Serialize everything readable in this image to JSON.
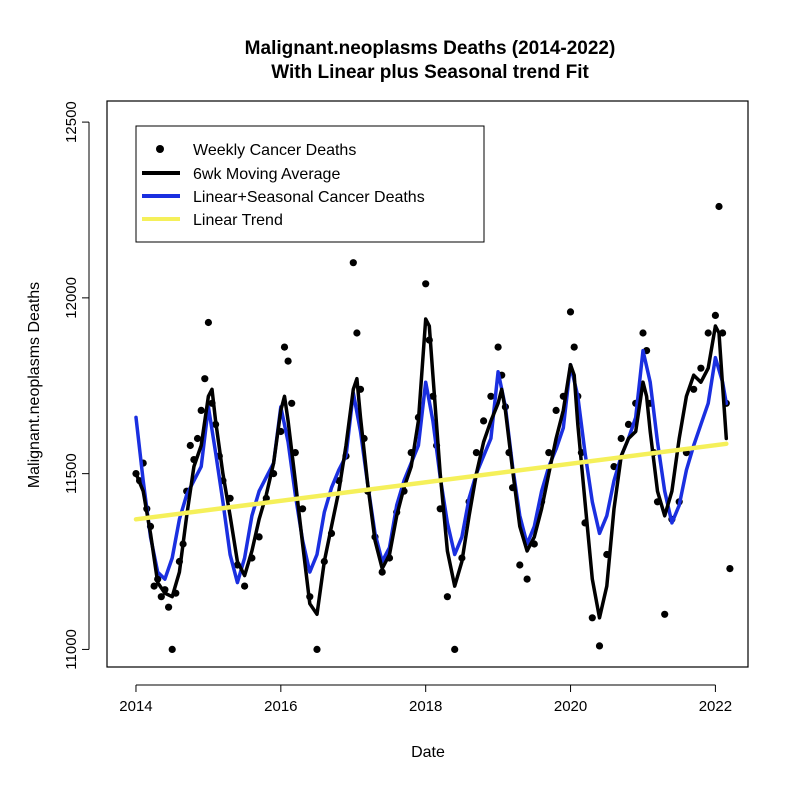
{
  "chart_data": {
    "type": "line",
    "title": "Malignant.neoplasms Deaths (2014-2022)",
    "subtitle": "With Linear plus Seasonal trend Fit",
    "xlabel": "Date",
    "ylabel": "Malignant.neoplasms Deaths",
    "xlim": [
      2013.6,
      2022.45
    ],
    "ylim": [
      10950,
      12560
    ],
    "x_ticks": [
      2014,
      2016,
      2018,
      2020,
      2022
    ],
    "y_ticks": [
      11000,
      11500,
      12000,
      12500
    ],
    "x_tick_labels": [
      "2014",
      "2016",
      "2018",
      "2020",
      "2022"
    ],
    "y_tick_labels": [
      "11000",
      "11500",
      "12000",
      "12500"
    ],
    "grid": false,
    "legend_position": "top-left",
    "legend": [
      {
        "label": "Weekly Cancer Deaths",
        "symbol": "point",
        "color": "#000000"
      },
      {
        "label": "6wk Moving Average",
        "symbol": "line",
        "color": "#000000"
      },
      {
        "label": "Linear+Seasonal Cancer Deaths",
        "symbol": "line",
        "color": "#1a2fe0"
      },
      {
        "label": "Linear Trend",
        "symbol": "line",
        "color": "#f5f05a"
      }
    ],
    "series": [
      {
        "name": "Weekly Cancer Deaths",
        "type": "scatter",
        "color": "#000000",
        "x": [
          2014.0,
          2014.05,
          2014.1,
          2014.15,
          2014.2,
          2014.25,
          2014.3,
          2014.35,
          2014.4,
          2014.45,
          2014.5,
          2014.55,
          2014.6,
          2014.65,
          2014.7,
          2014.75,
          2014.8,
          2014.85,
          2014.9,
          2014.95,
          2015.0,
          2015.05,
          2015.1,
          2015.15,
          2015.2,
          2015.3,
          2015.4,
          2015.5,
          2015.6,
          2015.7,
          2015.8,
          2015.9,
          2016.0,
          2016.05,
          2016.1,
          2016.15,
          2016.2,
          2016.3,
          2016.4,
          2016.5,
          2016.6,
          2016.7,
          2016.8,
          2016.9,
          2017.0,
          2017.05,
          2017.1,
          2017.15,
          2017.2,
          2017.3,
          2017.4,
          2017.5,
          2017.6,
          2017.7,
          2017.8,
          2017.9,
          2018.0,
          2018.05,
          2018.1,
          2018.15,
          2018.2,
          2018.3,
          2018.4,
          2018.5,
          2018.6,
          2018.7,
          2018.8,
          2018.9,
          2019.0,
          2019.05,
          2019.1,
          2019.15,
          2019.2,
          2019.3,
          2019.4,
          2019.5,
          2019.6,
          2019.7,
          2019.8,
          2019.9,
          2020.0,
          2020.05,
          2020.1,
          2020.15,
          2020.2,
          2020.3,
          2020.4,
          2020.5,
          2020.6,
          2020.7,
          2020.8,
          2020.9,
          2021.0,
          2021.05,
          2021.1,
          2021.15,
          2021.2,
          2021.3,
          2021.4,
          2021.5,
          2021.6,
          2021.7,
          2021.8,
          2021.9,
          2022.0,
          2022.05,
          2022.1,
          2022.15,
          2022.2
        ],
        "y": [
          11500,
          11480,
          11530,
          11400,
          11350,
          11180,
          11200,
          11150,
          11170,
          11120,
          11000,
          11160,
          11250,
          11300,
          11450,
          11580,
          11540,
          11600,
          11680,
          11770,
          11930,
          11700,
          11640,
          11550,
          11480,
          11430,
          11240,
          11180,
          11260,
          11320,
          11430,
          11500,
          11620,
          11860,
          11820,
          11700,
          11560,
          11400,
          11150,
          11000,
          11250,
          11330,
          11480,
          11550,
          12100,
          11900,
          11740,
          11600,
          11450,
          11320,
          11220,
          11260,
          11390,
          11450,
          11560,
          11660,
          12040,
          11880,
          11720,
          11580,
          11400,
          11150,
          11000,
          11260,
          11420,
          11560,
          11650,
          11720,
          11860,
          11780,
          11690,
          11560,
          11460,
          11240,
          11200,
          11300,
          11420,
          11560,
          11680,
          11720,
          11960,
          11860,
          11720,
          11560,
          11360,
          11090,
          11010,
          11270,
          11520,
          11600,
          11640,
          11700,
          11900,
          11850,
          11700,
          11560,
          11420,
          11100,
          11370,
          11420,
          11560,
          11740,
          11800,
          11900,
          11950,
          12260,
          11900,
          11700,
          11230
        ]
      },
      {
        "name": "6wk Moving Average",
        "type": "line",
        "color": "#000000",
        "x": [
          2014.0,
          2014.1,
          2014.2,
          2014.3,
          2014.4,
          2014.5,
          2014.6,
          2014.7,
          2014.8,
          2014.9,
          2015.0,
          2015.05,
          2015.1,
          2015.2,
          2015.3,
          2015.4,
          2015.5,
          2015.6,
          2015.7,
          2015.8,
          2015.9,
          2016.0,
          2016.05,
          2016.1,
          2016.2,
          2016.3,
          2016.4,
          2016.5,
          2016.6,
          2016.7,
          2016.8,
          2016.9,
          2017.0,
          2017.05,
          2017.1,
          2017.2,
          2017.3,
          2017.4,
          2017.5,
          2017.6,
          2017.7,
          2017.8,
          2017.9,
          2018.0,
          2018.05,
          2018.1,
          2018.2,
          2018.3,
          2018.4,
          2018.5,
          2018.6,
          2018.7,
          2018.8,
          2018.9,
          2019.0,
          2019.05,
          2019.1,
          2019.2,
          2019.3,
          2019.4,
          2019.5,
          2019.6,
          2019.7,
          2019.8,
          2019.9,
          2020.0,
          2020.05,
          2020.1,
          2020.2,
          2020.3,
          2020.4,
          2020.5,
          2020.6,
          2020.7,
          2020.8,
          2020.9,
          2021.0,
          2021.05,
          2021.1,
          2021.2,
          2021.3,
          2021.4,
          2021.5,
          2021.6,
          2021.7,
          2021.8,
          2021.9,
          2022.0,
          2022.05,
          2022.1,
          2022.15
        ],
        "y": [
          11500,
          11450,
          11330,
          11190,
          11160,
          11150,
          11220,
          11380,
          11520,
          11580,
          11720,
          11740,
          11650,
          11500,
          11380,
          11250,
          11210,
          11280,
          11370,
          11440,
          11530,
          11680,
          11720,
          11650,
          11480,
          11300,
          11130,
          11100,
          11250,
          11350,
          11450,
          11580,
          11740,
          11770,
          11660,
          11470,
          11310,
          11230,
          11270,
          11380,
          11460,
          11520,
          11650,
          11940,
          11920,
          11780,
          11500,
          11280,
          11180,
          11250,
          11380,
          11500,
          11590,
          11650,
          11700,
          11740,
          11680,
          11510,
          11350,
          11280,
          11320,
          11400,
          11500,
          11600,
          11680,
          11810,
          11780,
          11640,
          11420,
          11200,
          11090,
          11180,
          11400,
          11550,
          11600,
          11620,
          11760,
          11720,
          11620,
          11450,
          11380,
          11450,
          11600,
          11720,
          11780,
          11760,
          11800,
          11920,
          11900,
          11750,
          11600
        ]
      },
      {
        "name": "Linear+Seasonal Cancer Deaths",
        "type": "line",
        "color": "#1a2fe0",
        "x": [
          2014.0,
          2014.1,
          2014.2,
          2014.3,
          2014.4,
          2014.5,
          2014.6,
          2014.7,
          2014.8,
          2014.9,
          2015.0,
          2015.1,
          2015.2,
          2015.3,
          2015.4,
          2015.5,
          2015.6,
          2015.7,
          2015.8,
          2015.9,
          2016.0,
          2016.1,
          2016.2,
          2016.3,
          2016.4,
          2016.5,
          2016.6,
          2016.7,
          2016.8,
          2016.9,
          2017.0,
          2017.1,
          2017.2,
          2017.3,
          2017.4,
          2017.5,
          2017.6,
          2017.7,
          2017.8,
          2017.9,
          2018.0,
          2018.1,
          2018.2,
          2018.3,
          2018.4,
          2018.5,
          2018.6,
          2018.7,
          2018.8,
          2018.9,
          2019.0,
          2019.1,
          2019.2,
          2019.3,
          2019.4,
          2019.5,
          2019.6,
          2019.7,
          2019.8,
          2019.9,
          2020.0,
          2020.1,
          2020.2,
          2020.3,
          2020.4,
          2020.5,
          2020.6,
          2020.7,
          2020.8,
          2020.9,
          2021.0,
          2021.1,
          2021.2,
          2021.3,
          2021.4,
          2021.5,
          2021.6,
          2021.7,
          2021.8,
          2021.9,
          2022.0,
          2022.1,
          2022.15
        ],
        "y": [
          11660,
          11480,
          11320,
          11220,
          11200,
          11260,
          11370,
          11440,
          11480,
          11520,
          11690,
          11560,
          11420,
          11270,
          11190,
          11260,
          11380,
          11450,
          11490,
          11530,
          11690,
          11590,
          11440,
          11310,
          11220,
          11270,
          11390,
          11460,
          11510,
          11550,
          11730,
          11620,
          11470,
          11330,
          11250,
          11290,
          11410,
          11480,
          11530,
          11580,
          11760,
          11650,
          11490,
          11360,
          11270,
          11320,
          11430,
          11500,
          11550,
          11600,
          11790,
          11690,
          11520,
          11380,
          11300,
          11350,
          11450,
          11520,
          11570,
          11630,
          11810,
          11720,
          11560,
          11420,
          11330,
          11380,
          11480,
          11550,
          11600,
          11660,
          11850,
          11760,
          11590,
          11450,
          11360,
          11410,
          11510,
          11580,
          11640,
          11700,
          11830,
          11760,
          11700
        ]
      },
      {
        "name": "Linear Trend",
        "type": "line",
        "color": "#f5f05a",
        "x": [
          2014.0,
          2022.15
        ],
        "y": [
          11370,
          11585
        ]
      }
    ]
  }
}
